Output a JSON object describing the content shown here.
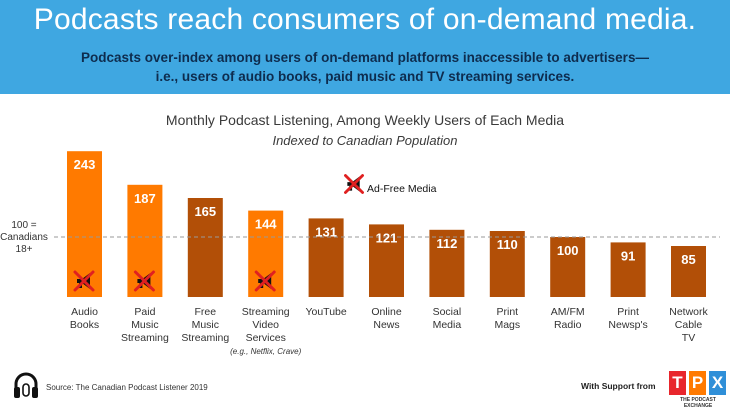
{
  "header": {
    "title": "Podcasts reach consumers of on-demand media.",
    "subtitle": "Podcasts over-index among users of on-demand platforms inaccessible to advertisers—i.e., users of audio books, paid music and TV streaming services."
  },
  "chart_data": {
    "type": "bar",
    "title": "Monthly Podcast Listening, Among Weekly Users of Each Media",
    "subtitle": "Indexed to Canadian Population",
    "categories": [
      [
        "Audio",
        "Books"
      ],
      [
        "Paid",
        "Music",
        "Streaming"
      ],
      [
        "Free",
        "Music",
        "Streaming"
      ],
      [
        "Streaming",
        "Video",
        "Services"
      ],
      [
        "YouTube"
      ],
      [
        "Online",
        "News"
      ],
      [
        "Social",
        "Media"
      ],
      [
        "Print",
        "Mags"
      ],
      [
        "AM/FM",
        "Radio"
      ],
      [
        "Print",
        "Newsp's"
      ],
      [
        "Network",
        "Cable",
        "TV"
      ]
    ],
    "values": [
      243,
      187,
      165,
      144,
      131,
      121,
      112,
      110,
      100,
      91,
      85
    ],
    "ad_free": [
      true,
      true,
      false,
      true,
      false,
      false,
      false,
      false,
      false,
      false,
      false
    ],
    "category_notes": [
      "",
      "",
      "",
      "(e.g., Netflix, Crave)",
      "",
      "",
      "",
      "",
      "",
      "",
      ""
    ],
    "reference_line": {
      "value": 100,
      "label": [
        "100 =",
        "Canadians",
        "18+"
      ]
    },
    "legend": {
      "ad_free_label": "Ad-Free Media"
    },
    "colors": {
      "highlight": "#ff7a00",
      "default": "#b24f07",
      "reference_line": "#999999",
      "ad_free_cross": "#e02020"
    },
    "ylim": [
      0,
      250
    ]
  },
  "footer": {
    "source": "Source: The Canadian Podcast Listener 2019",
    "support": "With Support from",
    "logo_letters": [
      "T",
      "P",
      "X"
    ],
    "logo_subtitle": "THE PODCAST EXCHANGE",
    "logo_colors": [
      "#e8262c",
      "#ff7a00",
      "#2f8fd8"
    ]
  },
  "icons": {
    "headphones": "headphones-icon",
    "ad_free": "megaphone-crossed-icon"
  }
}
